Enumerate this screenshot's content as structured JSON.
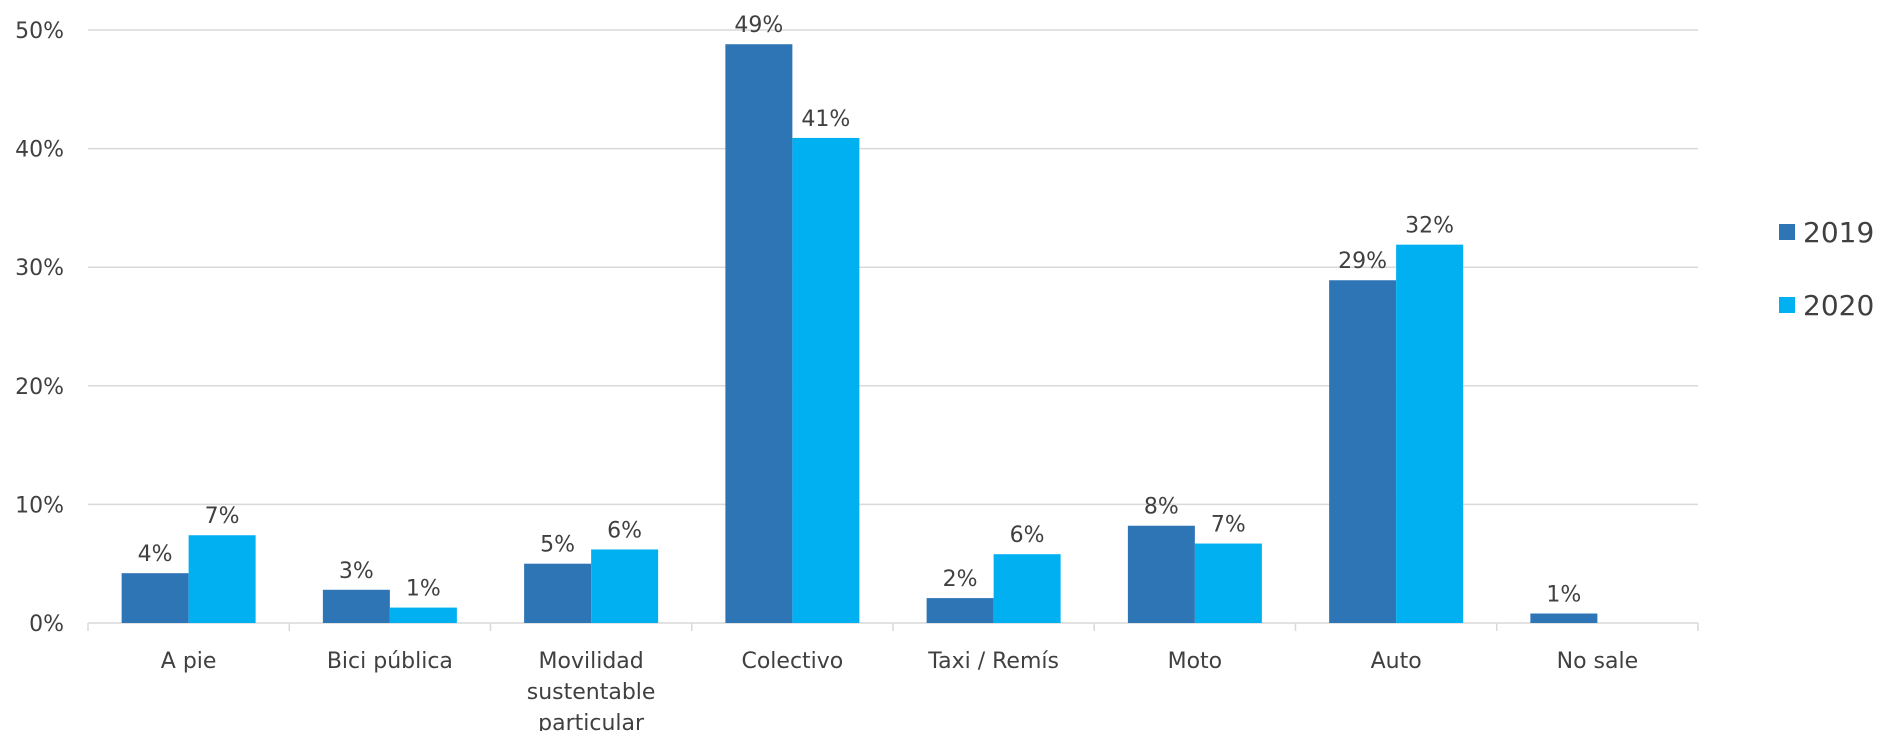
{
  "chart_data": {
    "type": "bar",
    "categories": [
      [
        "A pie"
      ],
      [
        "Bici pública"
      ],
      [
        "Movilidad",
        "sustentable",
        "particular"
      ],
      [
        "Colectivo"
      ],
      [
        "Taxi / Remís"
      ],
      [
        "Moto"
      ],
      [
        "Auto"
      ],
      [
        "No sale"
      ]
    ],
    "series": [
      {
        "name": "2019",
        "color": "#2E75B6",
        "values": [
          4.2,
          2.8,
          5.0,
          48.8,
          2.1,
          8.2,
          28.9,
          0.8
        ],
        "labels": [
          "4%",
          "3%",
          "5%",
          "49%",
          "2%",
          "8%",
          "29%",
          "1%"
        ]
      },
      {
        "name": "2020",
        "color": "#00B0F0",
        "values": [
          7.4,
          1.3,
          6.2,
          40.9,
          5.8,
          6.7,
          31.9,
          null
        ],
        "labels": [
          "7%",
          "1%",
          "6%",
          "41%",
          "6%",
          "7%",
          "32%",
          null
        ]
      }
    ],
    "y_ticks": [
      0,
      10,
      20,
      30,
      40,
      50
    ],
    "y_tick_labels": [
      "0%",
      "10%",
      "20%",
      "30%",
      "40%",
      "50%"
    ],
    "ylim": [
      0,
      50
    ],
    "grid": true,
    "legend_position": "right"
  }
}
